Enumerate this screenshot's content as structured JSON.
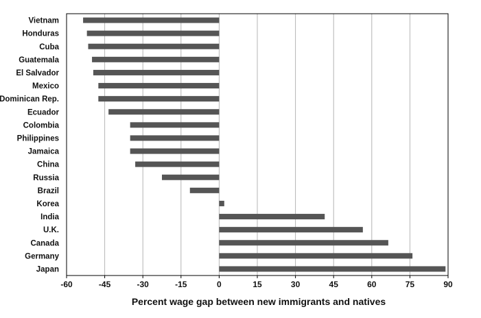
{
  "chart_data": {
    "type": "bar",
    "orientation": "horizontal",
    "categories": [
      "Vietnam",
      "Honduras",
      "Cuba",
      "Guatemala",
      "El Salvador",
      "Mexico",
      "Dominican Rep.",
      "Ecuador",
      "Colombia",
      "Philippines",
      "Jamaica",
      "China",
      "Russia",
      "Brazil",
      "Korea",
      "India",
      "U.K.",
      "Canada",
      "Germany",
      "Japan"
    ],
    "values": [
      -53.5,
      -52,
      -51.5,
      -50,
      -49.5,
      -47.5,
      -47.5,
      -43.5,
      -35,
      -35,
      -35,
      -33,
      -22.5,
      -11.5,
      2,
      41.5,
      56.5,
      66.5,
      76,
      89
    ],
    "xlabel": "Percent wage gap between new immigrants and natives",
    "ylabel": "",
    "xlim": [
      -60,
      90
    ],
    "xticks": [
      "-60",
      "-45",
      "-30",
      "-15",
      "0",
      "15",
      "30",
      "45",
      "60",
      "75",
      "90"
    ],
    "grid": "vertical",
    "bar_color": "#555555"
  }
}
